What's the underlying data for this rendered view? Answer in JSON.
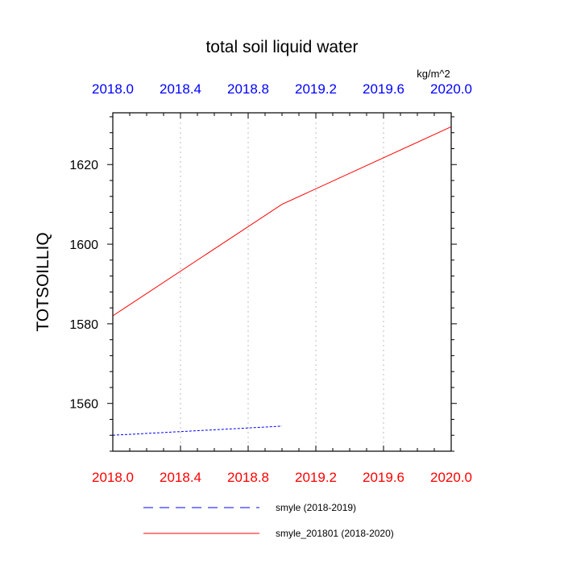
{
  "chart_data": {
    "type": "line",
    "title": "total soil liquid water",
    "units": "kg/m^2",
    "ylabel": "TOTSOILLIQ",
    "xlim": [
      2018.0,
      2020.0
    ],
    "ylim": [
      1548,
      1633
    ],
    "x_ticks": [
      "2018.0",
      "2018.4",
      "2018.8",
      "2019.2",
      "2019.6",
      "2020.0"
    ],
    "x_tick_values": [
      2018.0,
      2018.4,
      2018.8,
      2019.2,
      2019.6,
      2020.0
    ],
    "y_ticks": [
      "1560",
      "1580",
      "1600",
      "1620"
    ],
    "y_tick_values": [
      1560,
      1580,
      1600,
      1620
    ],
    "grid": "vertical dotted at major x ticks",
    "top_axis_color": "#0000ff",
    "bottom_axis_color": "#ff0000",
    "series": [
      {
        "name": "smyle (2018-2019)",
        "color": "#0000ff",
        "dash": "dashed",
        "x": [
          2018.0,
          2019.0
        ],
        "y": [
          1552,
          1554.3
        ]
      },
      {
        "name": "smyle_201801 (2018-2020)",
        "color": "#ff0000",
        "dash": "solid",
        "x": [
          2018.0,
          2019.0,
          2020.0
        ],
        "y": [
          1582,
          1610,
          1629.5
        ]
      }
    ],
    "legend": "bottom-center"
  }
}
